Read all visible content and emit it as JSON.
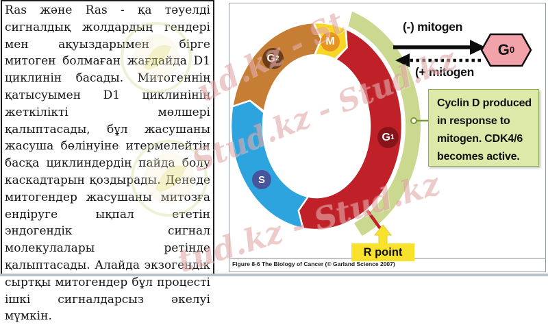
{
  "left_panel": {
    "paragraph": "Ras және Ras - қа тәуелді сигналдық жолдардың гендері мен ақуыздарымен бірге митоген болмаған жағдайда D1 циклинін басады. Митогеннің қатысуымен D1 циклинінің жеткілікті мөлшері қалыптасады, бұл жасушаны жасуша бөлінуіне итермелейтін басқа циклиндердің пайда болу каскадтарын қоздырады. Денеде митогендер жасушаны митозға ендіруге ықпал ететін эндогендік сигнал молекулалары ретінде қалыптасады. Алайда экзогендік сыртқы митогендер бұл процесті ішкі сигналдарсыз әкелуі мүмкін."
  },
  "diagram": {
    "phases": {
      "m": {
        "label": "M",
        "sub": "",
        "arc_color": "#f8d628",
        "badge_color": "#e79421"
      },
      "g1": {
        "label": "G",
        "sub": "1",
        "arc_color": "#c02028",
        "badge_color": "#871419"
      },
      "s": {
        "label": "S",
        "sub": "",
        "arc_color": "#2da4dd",
        "badge_color": "#46549c"
      },
      "g2": {
        "label": "G",
        "sub": "2",
        "arc_color": "#c67e35",
        "badge_color": "#6b3d1b"
      }
    },
    "cyclin_arc_color": "#cbd890",
    "r_point_tick_color": "#c41f26",
    "mitogen_minus": "(-) mitogen",
    "mitogen_plus": "(+ mitogen",
    "g0": {
      "label": "G",
      "sub": "0",
      "fill": "#f2a3aa"
    },
    "callout": {
      "text": "Cyclin D produced in response to mitogen. CDK4/6 becomes active.",
      "bg": "#dde9a9",
      "border": "#90b04c"
    },
    "r_point": {
      "label": "R point",
      "bg": "#f9e22b"
    },
    "caption": "Figure 8-6  The Biology of Cancer (© Garland Science 2007)"
  },
  "watermarks": {
    "texts": [
      "ud.kz - St",
      "Stud.kz - Stud.kz",
      "tud.kz - Stud.kz"
    ]
  }
}
